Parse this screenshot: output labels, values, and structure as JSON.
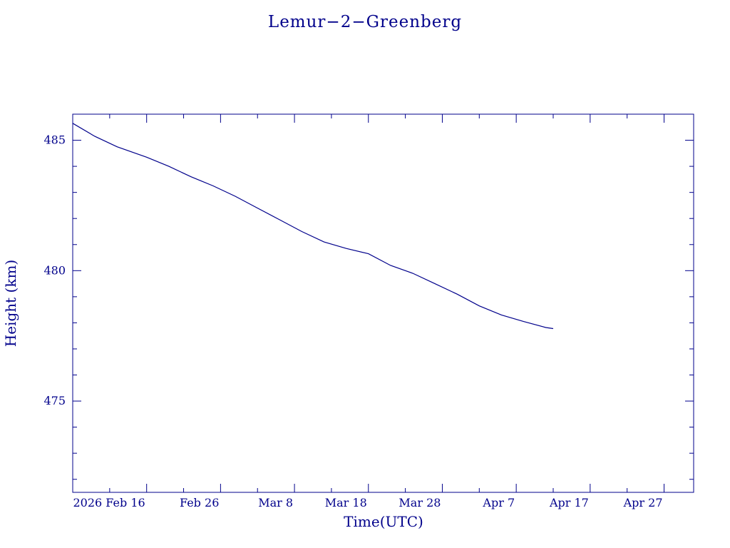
{
  "chart_data": {
    "type": "line",
    "title": "Lemur−2−Greenberg",
    "xlabel": "Time(UTC)",
    "ylabel": "Height (km)",
    "xlim": [
      "2026-02-06",
      "2026-05-01"
    ],
    "ylim": [
      471.5,
      486
    ],
    "y_ticks": [
      475,
      480,
      485
    ],
    "x_ticks": [
      {
        "date": "2026-02-16",
        "label": "2026 Feb 16"
      },
      {
        "date": "2026-02-26",
        "label": "Feb 26"
      },
      {
        "date": "2026-03-08",
        "label": "Mar  8"
      },
      {
        "date": "2026-03-18",
        "label": "Mar 18"
      },
      {
        "date": "2026-03-28",
        "label": "Mar 28"
      },
      {
        "date": "2026-04-07",
        "label": "Apr  7"
      },
      {
        "date": "2026-04-17",
        "label": "Apr 17"
      },
      {
        "date": "2026-04-27",
        "label": "Apr 27"
      }
    ],
    "grid": false,
    "color": "#00008b",
    "series": [
      {
        "x": [
          "2026-02-06",
          "2026-02-09",
          "2026-02-12",
          "2026-02-16",
          "2026-02-19",
          "2026-02-22",
          "2026-02-25",
          "2026-02-28",
          "2026-03-03",
          "2026-03-06",
          "2026-03-09",
          "2026-03-12",
          "2026-03-15",
          "2026-03-18",
          "2026-03-21",
          "2026-03-24",
          "2026-03-27",
          "2026-03-30",
          "2026-04-02",
          "2026-04-05",
          "2026-04-08",
          "2026-04-11",
          "2026-04-12"
        ],
        "y": [
          485.65,
          485.15,
          484.75,
          484.35,
          484.0,
          483.6,
          483.25,
          482.85,
          482.4,
          481.95,
          481.5,
          481.1,
          480.85,
          480.65,
          480.2,
          479.9,
          479.5,
          479.1,
          478.65,
          478.3,
          478.05,
          477.82,
          477.78
        ]
      }
    ]
  }
}
